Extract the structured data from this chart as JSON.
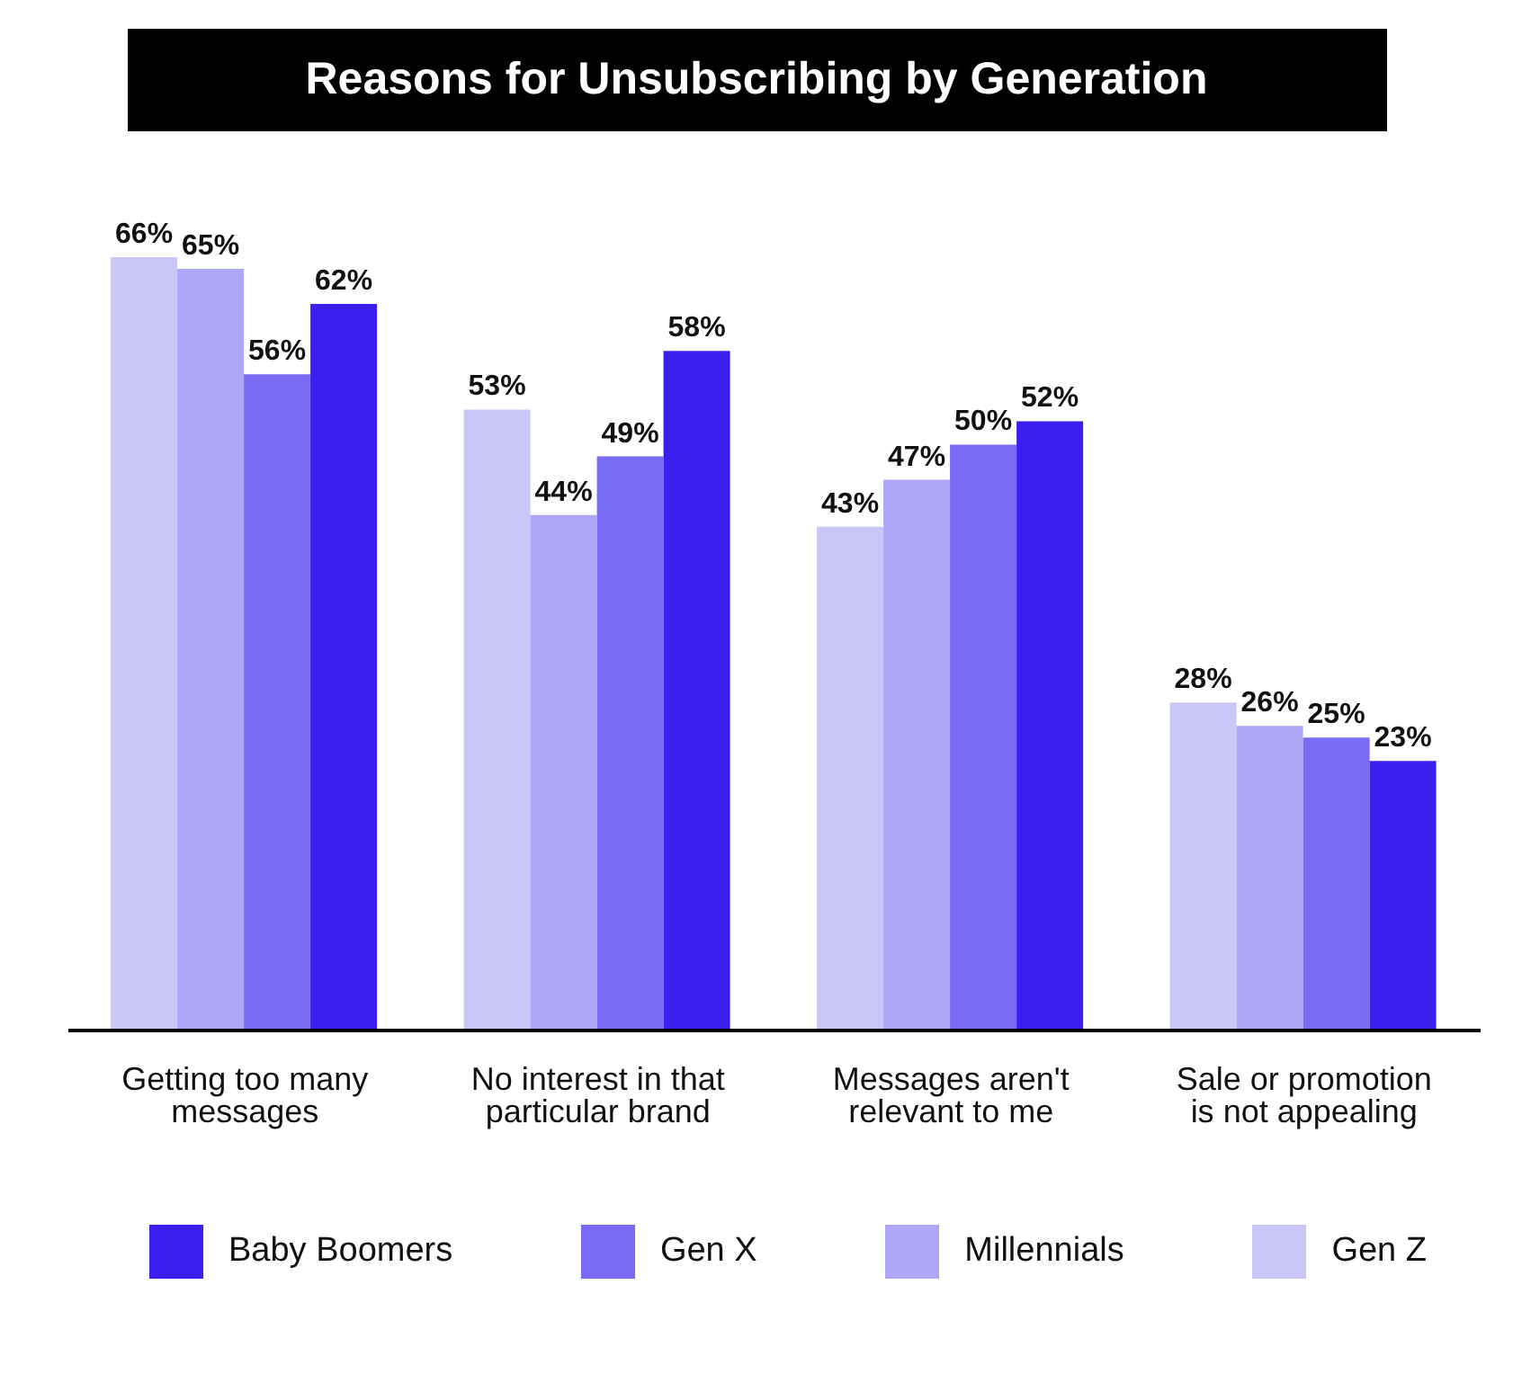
{
  "chart_data": {
    "type": "bar",
    "title": "Reasons for Unsubscribing by Generation",
    "categories": [
      "Getting too many messages",
      "No interest in that particular brand",
      "Messages aren't relevant to me",
      "Sale or promotion is not appealing"
    ],
    "series": [
      {
        "name": "Gen Z",
        "color": "#cbc6f8",
        "values": [
          66,
          53,
          43,
          28
        ],
        "value_labels": [
          "66%",
          "53%",
          "43%",
          "28%"
        ]
      },
      {
        "name": "Millennials",
        "color": "#aea6f6",
        "values": [
          65,
          44,
          47,
          26
        ],
        "value_labels": [
          "65%",
          "44%",
          "47%",
          "26%"
        ]
      },
      {
        "name": "Gen X",
        "color": "#7a6bf4",
        "values": [
          56,
          49,
          50,
          25
        ],
        "value_labels": [
          "56%",
          "49%",
          "50%",
          "25%"
        ]
      },
      {
        "name": "Baby Boomers",
        "color": "#3b1ff0",
        "values": [
          62,
          58,
          52,
          23
        ],
        "value_labels": [
          "62%",
          "58%",
          "52%",
          "23%"
        ]
      }
    ],
    "legend": "bottom",
    "grid": false
  }
}
